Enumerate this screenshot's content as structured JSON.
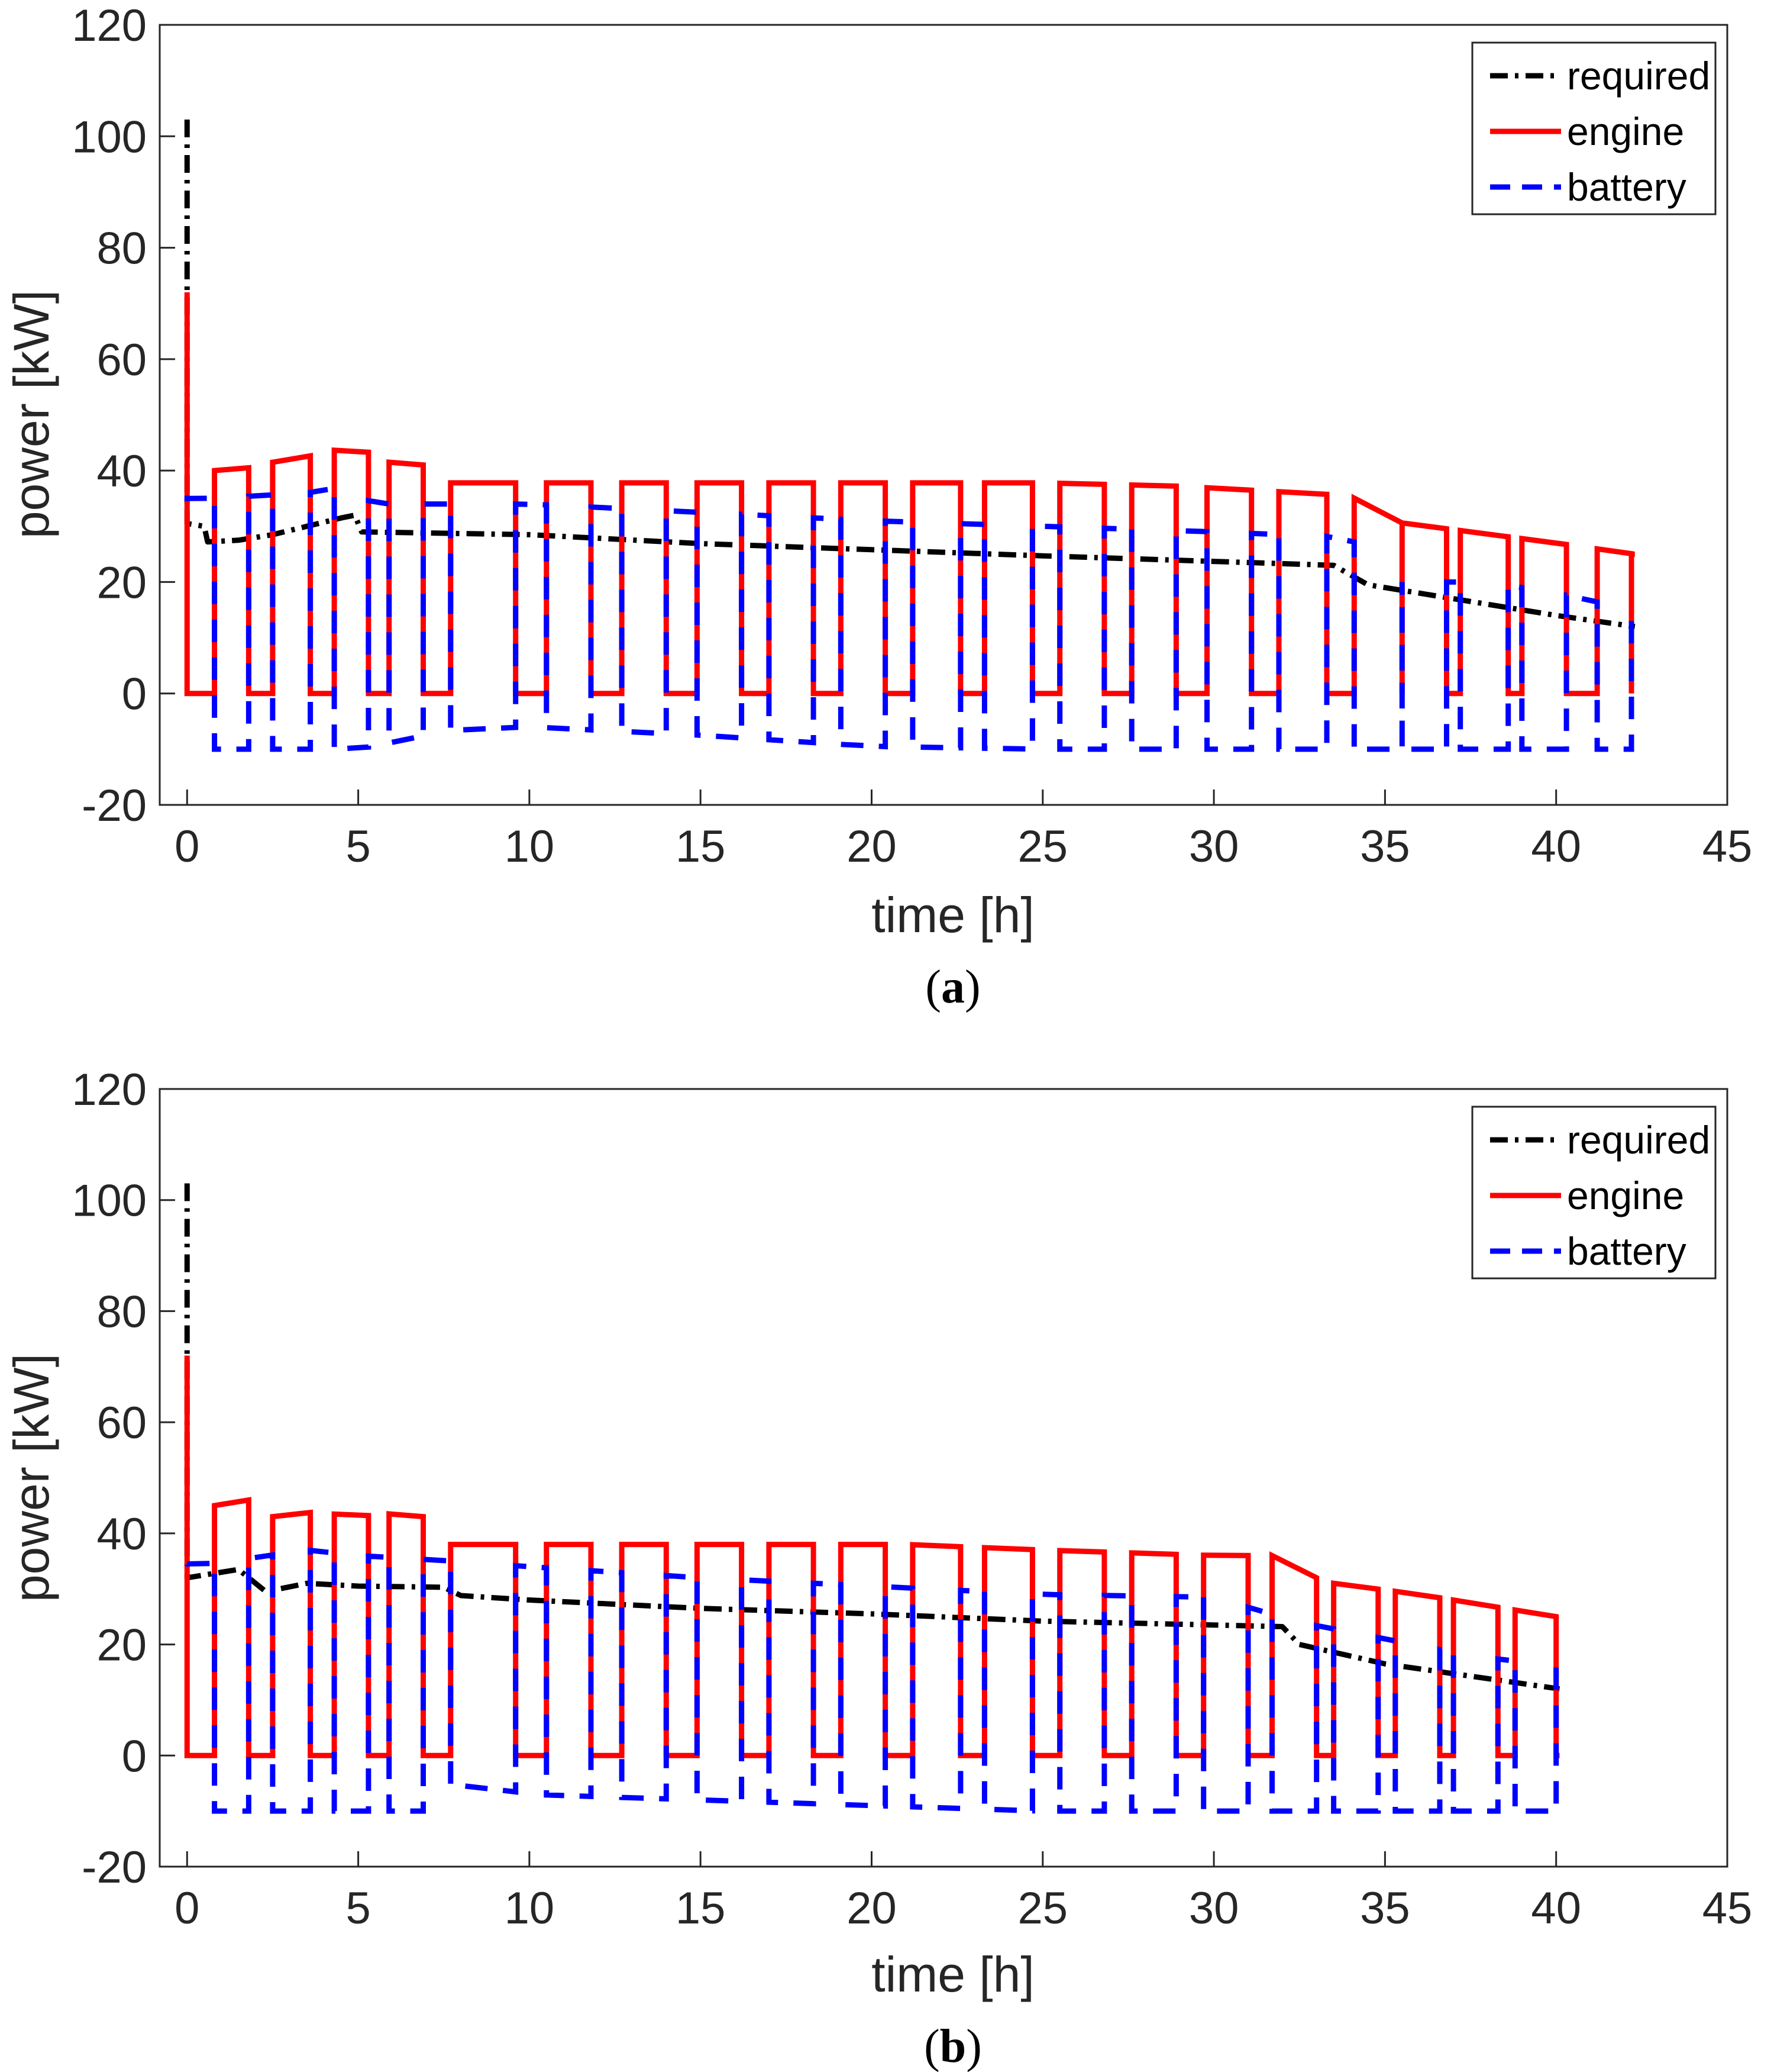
{
  "figure": {
    "panels": [
      {
        "caption_open": "(",
        "caption_letter": "a",
        "caption_close": ")"
      },
      {
        "caption_open": "(",
        "caption_letter": "b",
        "caption_close": ")"
      }
    ]
  },
  "chart_data": [
    {
      "type": "line",
      "panel": "a",
      "xlabel": "time [h]",
      "ylabel": "power [kW]",
      "xlim": [
        -0.8,
        45
      ],
      "ylim": [
        -20,
        120
      ],
      "xticks": [
        0,
        5,
        10,
        15,
        20,
        25,
        30,
        35,
        40,
        45
      ],
      "yticks": [
        -20,
        0,
        20,
        40,
        60,
        80,
        100,
        120
      ],
      "legend": {
        "position": "top-right",
        "entries": [
          "required",
          "engine",
          "battery"
        ]
      },
      "colors": {
        "required": "#000000",
        "engine": "#ff0000",
        "battery": "#0000ff"
      },
      "t_end": 42.3,
      "spike": {
        "required_peak": 103,
        "engine_peak": 72,
        "battery_start": 35.5
      },
      "required_curve": [
        [
          0,
          30.5
        ],
        [
          0.5,
          30
        ],
        [
          0.6,
          27.2
        ],
        [
          1.5,
          27.5
        ],
        [
          2.5,
          28.5
        ],
        [
          3.5,
          30
        ],
        [
          4.5,
          31.5
        ],
        [
          4.9,
          32
        ],
        [
          5.1,
          29
        ],
        [
          8,
          28.7
        ],
        [
          10,
          28.5
        ],
        [
          15,
          26.9
        ],
        [
          20,
          25.8
        ],
        [
          25,
          24.7
        ],
        [
          30,
          23.7
        ],
        [
          33.5,
          23
        ],
        [
          34.5,
          19.5
        ],
        [
          40,
          14
        ],
        [
          42.3,
          12
        ]
      ],
      "engine_high_levels": [
        [
          0.8,
          40
        ],
        [
          1.8,
          40.5
        ],
        [
          2.5,
          41.5
        ],
        [
          3.5,
          42.5
        ],
        [
          4.2,
          43.5
        ],
        [
          4.9,
          44.5
        ],
        [
          5.9,
          41.5
        ],
        [
          6.9,
          41
        ],
        [
          7.7,
          37.8
        ],
        [
          25,
          37.8
        ],
        [
          29,
          37.2
        ],
        [
          34,
          35.5
        ],
        [
          35,
          31
        ],
        [
          40,
          27
        ],
        [
          42.3,
          25
        ]
      ],
      "battery_high_levels": [
        [
          0.7,
          35
        ],
        [
          3.5,
          36
        ],
        [
          4.5,
          37
        ],
        [
          5.5,
          34
        ],
        [
          10,
          34
        ],
        [
          15,
          32.5
        ],
        [
          20,
          31
        ],
        [
          25,
          30
        ],
        [
          30,
          29
        ],
        [
          34,
          28
        ],
        [
          35,
          20
        ],
        [
          38,
          20
        ],
        [
          40,
          18
        ],
        [
          42.3,
          15
        ]
      ],
      "battery_low_levels": [
        [
          0.7,
          -10
        ],
        [
          5,
          -10
        ],
        [
          7.8,
          -6.5
        ],
        [
          10,
          -6
        ],
        [
          15,
          -7.5
        ],
        [
          20,
          -9.5
        ],
        [
          25,
          -10
        ],
        [
          42.3,
          -10
        ]
      ],
      "on_intervals": [
        [
          0.8,
          1.8
        ],
        [
          2.5,
          3.6
        ],
        [
          4.3,
          5.3
        ],
        [
          5.9,
          6.9
        ],
        [
          7.7,
          9.6
        ],
        [
          10.5,
          11.8
        ],
        [
          12.7,
          14
        ],
        [
          14.9,
          16.2
        ],
        [
          17,
          18.3
        ],
        [
          19.1,
          20.4
        ],
        [
          21.2,
          22.6
        ],
        [
          23.3,
          24.7
        ],
        [
          25.5,
          26.8
        ],
        [
          27.6,
          28.9
        ],
        [
          29.8,
          31.1
        ],
        [
          31.9,
          33.3
        ],
        [
          34.1,
          35.5
        ],
        [
          35.5,
          36.8
        ],
        [
          37.2,
          38.6
        ],
        [
          39,
          40.3
        ],
        [
          41.2,
          42.2
        ]
      ],
      "tail_on": [
        42.2,
        42.3
      ]
    },
    {
      "type": "line",
      "panel": "b",
      "xlabel": "time [h]",
      "ylabel": "power [kW]",
      "xlim": [
        -0.8,
        45
      ],
      "ylim": [
        -20,
        120
      ],
      "xticks": [
        0,
        5,
        10,
        15,
        20,
        25,
        30,
        35,
        40,
        45
      ],
      "yticks": [
        -20,
        0,
        20,
        40,
        60,
        80,
        100,
        120
      ],
      "legend": {
        "position": "top-right",
        "entries": [
          "required",
          "engine",
          "battery"
        ]
      },
      "colors": {
        "required": "#000000",
        "engine": "#ff0000",
        "battery": "#0000ff"
      },
      "t_end": 40.1,
      "spike": {
        "required_peak": 103,
        "engine_peak": 72,
        "battery_start": 34.5
      },
      "required_curve": [
        [
          0,
          32
        ],
        [
          1.5,
          33.5
        ],
        [
          2,
          31
        ],
        [
          2.3,
          29.5
        ],
        [
          3.5,
          31
        ],
        [
          5,
          30.5
        ],
        [
          7.5,
          30.3
        ],
        [
          8,
          28.8
        ],
        [
          10,
          28
        ],
        [
          15,
          26.5
        ],
        [
          20,
          25.5
        ],
        [
          25,
          24.2
        ],
        [
          30,
          23.5
        ],
        [
          32,
          23.2
        ],
        [
          32.5,
          20
        ],
        [
          35,
          16.5
        ],
        [
          40.1,
          12
        ]
      ],
      "engine_high_levels": [
        [
          0.8,
          45
        ],
        [
          1.8,
          46
        ],
        [
          2.5,
          43
        ],
        [
          3.5,
          43.8
        ],
        [
          4.2,
          43.5
        ],
        [
          5.3,
          43.2
        ],
        [
          5.9,
          43.5
        ],
        [
          6.9,
          43
        ],
        [
          7.7,
          38
        ],
        [
          21,
          38
        ],
        [
          25,
          37
        ],
        [
          30,
          36
        ],
        [
          32,
          36
        ],
        [
          32.5,
          33
        ],
        [
          33.5,
          31
        ],
        [
          36,
          29
        ],
        [
          40,
          25
        ]
      ],
      "battery_high_levels": [
        [
          0.7,
          34.5
        ],
        [
          3.5,
          37
        ],
        [
          5,
          36
        ],
        [
          7.8,
          35
        ],
        [
          10,
          34
        ],
        [
          15,
          32
        ],
        [
          20,
          30.5
        ],
        [
          25,
          29
        ],
        [
          30,
          28.5
        ],
        [
          32.5,
          24
        ],
        [
          35,
          21
        ],
        [
          37.5,
          18
        ],
        [
          40.1,
          16
        ]
      ],
      "battery_low_levels": [
        [
          0.7,
          -10
        ],
        [
          7,
          -10
        ],
        [
          7.8,
          -4.5
        ],
        [
          10,
          -7
        ],
        [
          15,
          -8
        ],
        [
          20,
          -9
        ],
        [
          25,
          -10
        ],
        [
          40.1,
          -10
        ]
      ],
      "on_intervals": [
        [
          0.8,
          1.8
        ],
        [
          2.5,
          3.6
        ],
        [
          4.3,
          5.3
        ],
        [
          5.9,
          6.9
        ],
        [
          7.7,
          9.6
        ],
        [
          10.5,
          11.8
        ],
        [
          12.7,
          14
        ],
        [
          14.9,
          16.2
        ],
        [
          17,
          18.3
        ],
        [
          19.1,
          20.4
        ],
        [
          21.2,
          22.6
        ],
        [
          23.3,
          24.7
        ],
        [
          25.5,
          26.8
        ],
        [
          27.6,
          28.9
        ],
        [
          29.7,
          31
        ],
        [
          31.7,
          33
        ],
        [
          33.5,
          34.8
        ],
        [
          35.3,
          36.6
        ],
        [
          37,
          38.3
        ],
        [
          38.8,
          40
        ]
      ],
      "tail_on": null,
      "notches": [
        [
          1.85,
          2.3,
          2.5
        ]
      ]
    }
  ]
}
